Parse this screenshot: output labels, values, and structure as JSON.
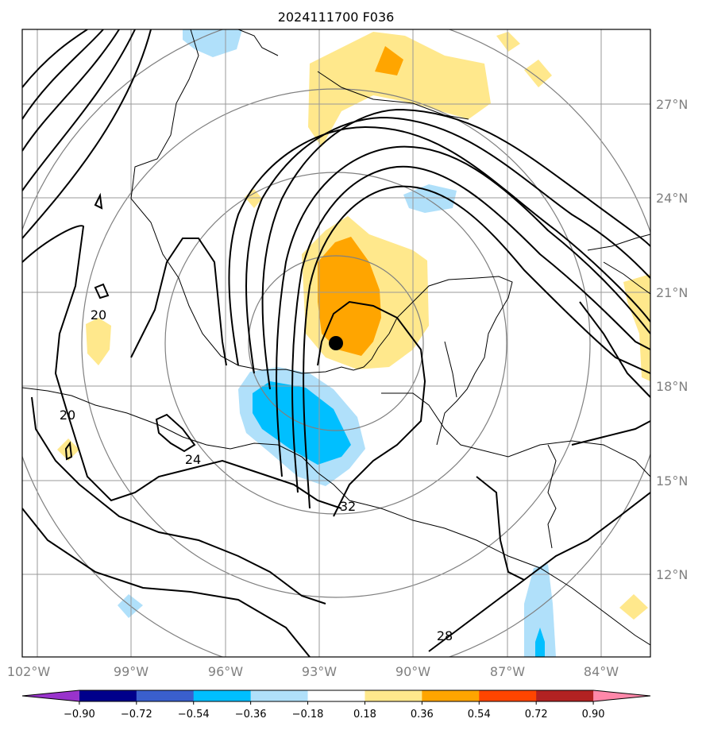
{
  "title": "2024111700 F036",
  "x_ticks": [
    "102°W",
    "99°W",
    "96°W",
    "93°W",
    "90°W",
    "87°W",
    "84°W"
  ],
  "y_ticks": [
    "27°N",
    "24°N",
    "21°N",
    "18°N",
    "15°N",
    "12°N"
  ],
  "colorbar": {
    "labels": [
      "−0.90",
      "−0.72",
      "−0.54",
      "−0.36",
      "−0.18",
      "0.18",
      "0.36",
      "0.54",
      "0.72",
      "0.90"
    ],
    "colors": [
      "#9933cc",
      "#00008b",
      "#3a5fcd",
      "#00bfff",
      "#b0e0fa",
      "#ffffff",
      "#ffe88c",
      "#ffa500",
      "#ff4500",
      "#b22222",
      "#ff88aa"
    ]
  },
  "contour_labels": [
    "20",
    "20",
    "24",
    "28",
    "32"
  ],
  "storm_marker": {
    "lon": -92.3,
    "lat": 19.4
  },
  "colors": {
    "land_outline": "#000000",
    "grid": "#999999",
    "range_rings": "#808080",
    "contour": "#000000"
  }
}
